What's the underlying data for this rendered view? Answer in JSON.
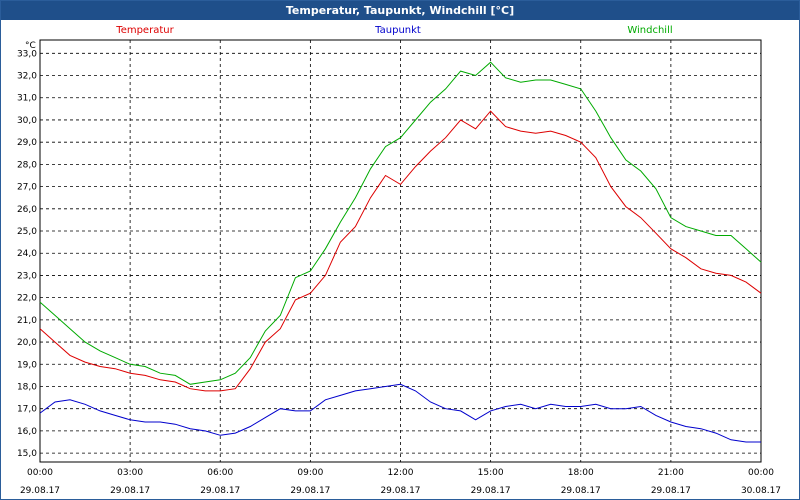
{
  "window": {
    "title": "Temperatur, Taupunkt, Windchill [°C]"
  },
  "chart_data": {
    "type": "line",
    "title": "Temperatur, Taupunkt, Windchill [°C]",
    "ylabel": "°C",
    "ylim": [
      14.6,
      33.6
    ],
    "y_ticks": [
      "15,0",
      "16,0",
      "17,0",
      "18,0",
      "19,0",
      "20,0",
      "21,0",
      "22,0",
      "23,0",
      "24,0",
      "25,0",
      "26,0",
      "27,0",
      "28,0",
      "29,0",
      "30,0",
      "31,0",
      "32,0",
      "33,0"
    ],
    "x_ticks": [
      {
        "time": "00:00",
        "date": "29.08.17"
      },
      {
        "time": "03:00",
        "date": "29.08.17"
      },
      {
        "time": "06:00",
        "date": "29.08.17"
      },
      {
        "time": "09:00",
        "date": "29.08.17"
      },
      {
        "time": "12:00",
        "date": "29.08.17"
      },
      {
        "time": "15:00",
        "date": "29.08.17"
      },
      {
        "time": "18:00",
        "date": "29.08.17"
      },
      {
        "time": "21:00",
        "date": "29.08.17"
      },
      {
        "time": "00:00",
        "date": "30.08.17"
      }
    ],
    "grid": true,
    "legend_position": "top",
    "x_hours": [
      0,
      0.5,
      1,
      1.5,
      2,
      2.5,
      3,
      3.5,
      4,
      4.5,
      5,
      5.5,
      6,
      6.5,
      7,
      7.5,
      8,
      8.5,
      9,
      9.5,
      10,
      10.5,
      11,
      11.5,
      12,
      12.5,
      13,
      13.5,
      14,
      14.5,
      15,
      15.5,
      16,
      16.5,
      17,
      17.5,
      18,
      18.5,
      19,
      19.5,
      20,
      20.5,
      21,
      21.5,
      22,
      22.5,
      23,
      23.5,
      24
    ],
    "series": [
      {
        "name": "Temperatur",
        "color": "#dd0000",
        "values": [
          20.6,
          20.0,
          19.4,
          19.1,
          18.9,
          18.8,
          18.6,
          18.5,
          18.3,
          18.2,
          17.9,
          17.8,
          17.8,
          17.9,
          18.8,
          20.0,
          20.6,
          21.9,
          22.2,
          23.0,
          24.5,
          25.2,
          26.5,
          27.5,
          27.1,
          27.9,
          28.6,
          29.2,
          30.0,
          29.6,
          30.4,
          29.7,
          29.5,
          29.4,
          29.5,
          29.3,
          29.0,
          28.3,
          27.0,
          26.1,
          25.6,
          24.9,
          24.2,
          23.8,
          23.3,
          23.1,
          23.0,
          22.7,
          22.2
        ]
      },
      {
        "name": "Taupunkt",
        "color": "#0000cc",
        "values": [
          16.8,
          17.3,
          17.4,
          17.2,
          16.9,
          16.7,
          16.5,
          16.4,
          16.4,
          16.3,
          16.1,
          16.0,
          15.8,
          15.9,
          16.2,
          16.6,
          17.0,
          16.9,
          16.9,
          17.4,
          17.6,
          17.8,
          17.9,
          18.0,
          18.1,
          17.8,
          17.3,
          17.0,
          16.9,
          16.5,
          16.9,
          17.1,
          17.2,
          17.0,
          17.2,
          17.1,
          17.1,
          17.2,
          17.0,
          17.0,
          17.1,
          16.7,
          16.4,
          16.2,
          16.1,
          15.9,
          15.6,
          15.5,
          15.5
        ]
      },
      {
        "name": "Windchill",
        "color": "#00aa00",
        "values": [
          21.8,
          21.2,
          20.6,
          20.0,
          19.6,
          19.3,
          19.0,
          18.9,
          18.6,
          18.5,
          18.1,
          18.2,
          18.3,
          18.6,
          19.3,
          20.5,
          21.2,
          22.9,
          23.2,
          24.2,
          25.4,
          26.5,
          27.8,
          28.8,
          29.2,
          30.0,
          30.8,
          31.4,
          32.2,
          32.0,
          32.6,
          31.9,
          31.7,
          31.8,
          31.8,
          31.6,
          31.4,
          30.4,
          29.2,
          28.2,
          27.7,
          26.9,
          25.6,
          25.2,
          25.0,
          24.8,
          24.8,
          24.2,
          23.6
        ]
      }
    ]
  }
}
